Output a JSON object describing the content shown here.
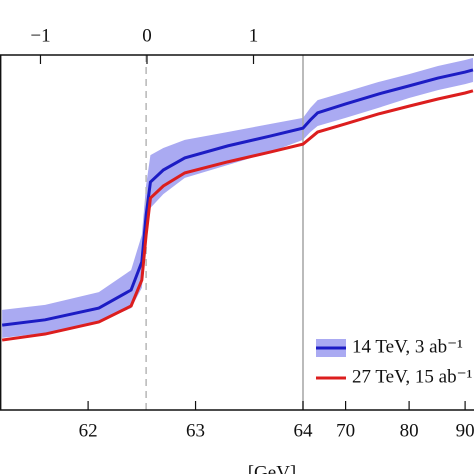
{
  "chart_data": {
    "type": "line",
    "x": [
      61.2,
      61.6,
      62.1,
      62.4,
      62.5,
      62.54,
      62.58,
      62.7,
      62.9,
      63.3,
      63.7,
      64,
      65,
      66,
      70,
      75,
      80,
      85,
      90,
      91.5
    ],
    "series": [
      {
        "name": "14 TeV, 3 ab⁻¹",
        "color": "#1c1cc4",
        "band_color": "#aaaaf2",
        "values": [
          23.9,
          25.4,
          28.7,
          33.8,
          41.7,
          54.9,
          64.2,
          67.6,
          71.0,
          74.4,
          77.2,
          79.4,
          81.7,
          83.7,
          86.2,
          89.0,
          91.3,
          93.5,
          95.2,
          95.8
        ],
        "upper": [
          28.2,
          29.6,
          33.2,
          39.4,
          49.3,
          63.4,
          71.8,
          73.8,
          76.1,
          78.3,
          80.6,
          82.3,
          85.1,
          87.3,
          89.6,
          92.4,
          94.6,
          96.9,
          98.6,
          99.2
        ],
        "lower": [
          20.3,
          21.7,
          24.8,
          28.7,
          34.4,
          46.5,
          56.9,
          60.8,
          65.4,
          69.0,
          72.7,
          76.1,
          78.3,
          80.0,
          82.3,
          85.1,
          87.9,
          90.1,
          91.8,
          92.4
        ]
      },
      {
        "name": "27 TeV, 15 ab⁻¹",
        "color": "#dc1e1e",
        "values": [
          19.7,
          21.4,
          24.8,
          29.3,
          36.6,
          49.3,
          59.7,
          63.1,
          66.8,
          69.9,
          72.7,
          74.9,
          76.6,
          78.3,
          80.6,
          83.4,
          85.6,
          87.6,
          89.3,
          89.9
        ]
      }
    ],
    "xlim": [
      61.18,
      91.7
    ],
    "xscale": "linear-log",
    "xbreak": 64,
    "xticks": [
      62,
      63,
      64,
      70,
      80,
      90
    ],
    "xlabel": "[GeV]",
    "x2lim": [
      -1.38,
      3.07
    ],
    "x2ticks": [
      {
        "value": -1,
        "label": "−1"
      },
      0,
      1
    ],
    "ylim": [
      0,
      100
    ],
    "vlines": [
      {
        "x": 62.54,
        "style": "dashed"
      },
      {
        "x": 64,
        "style": "solid"
      }
    ],
    "legend": "lower right"
  }
}
